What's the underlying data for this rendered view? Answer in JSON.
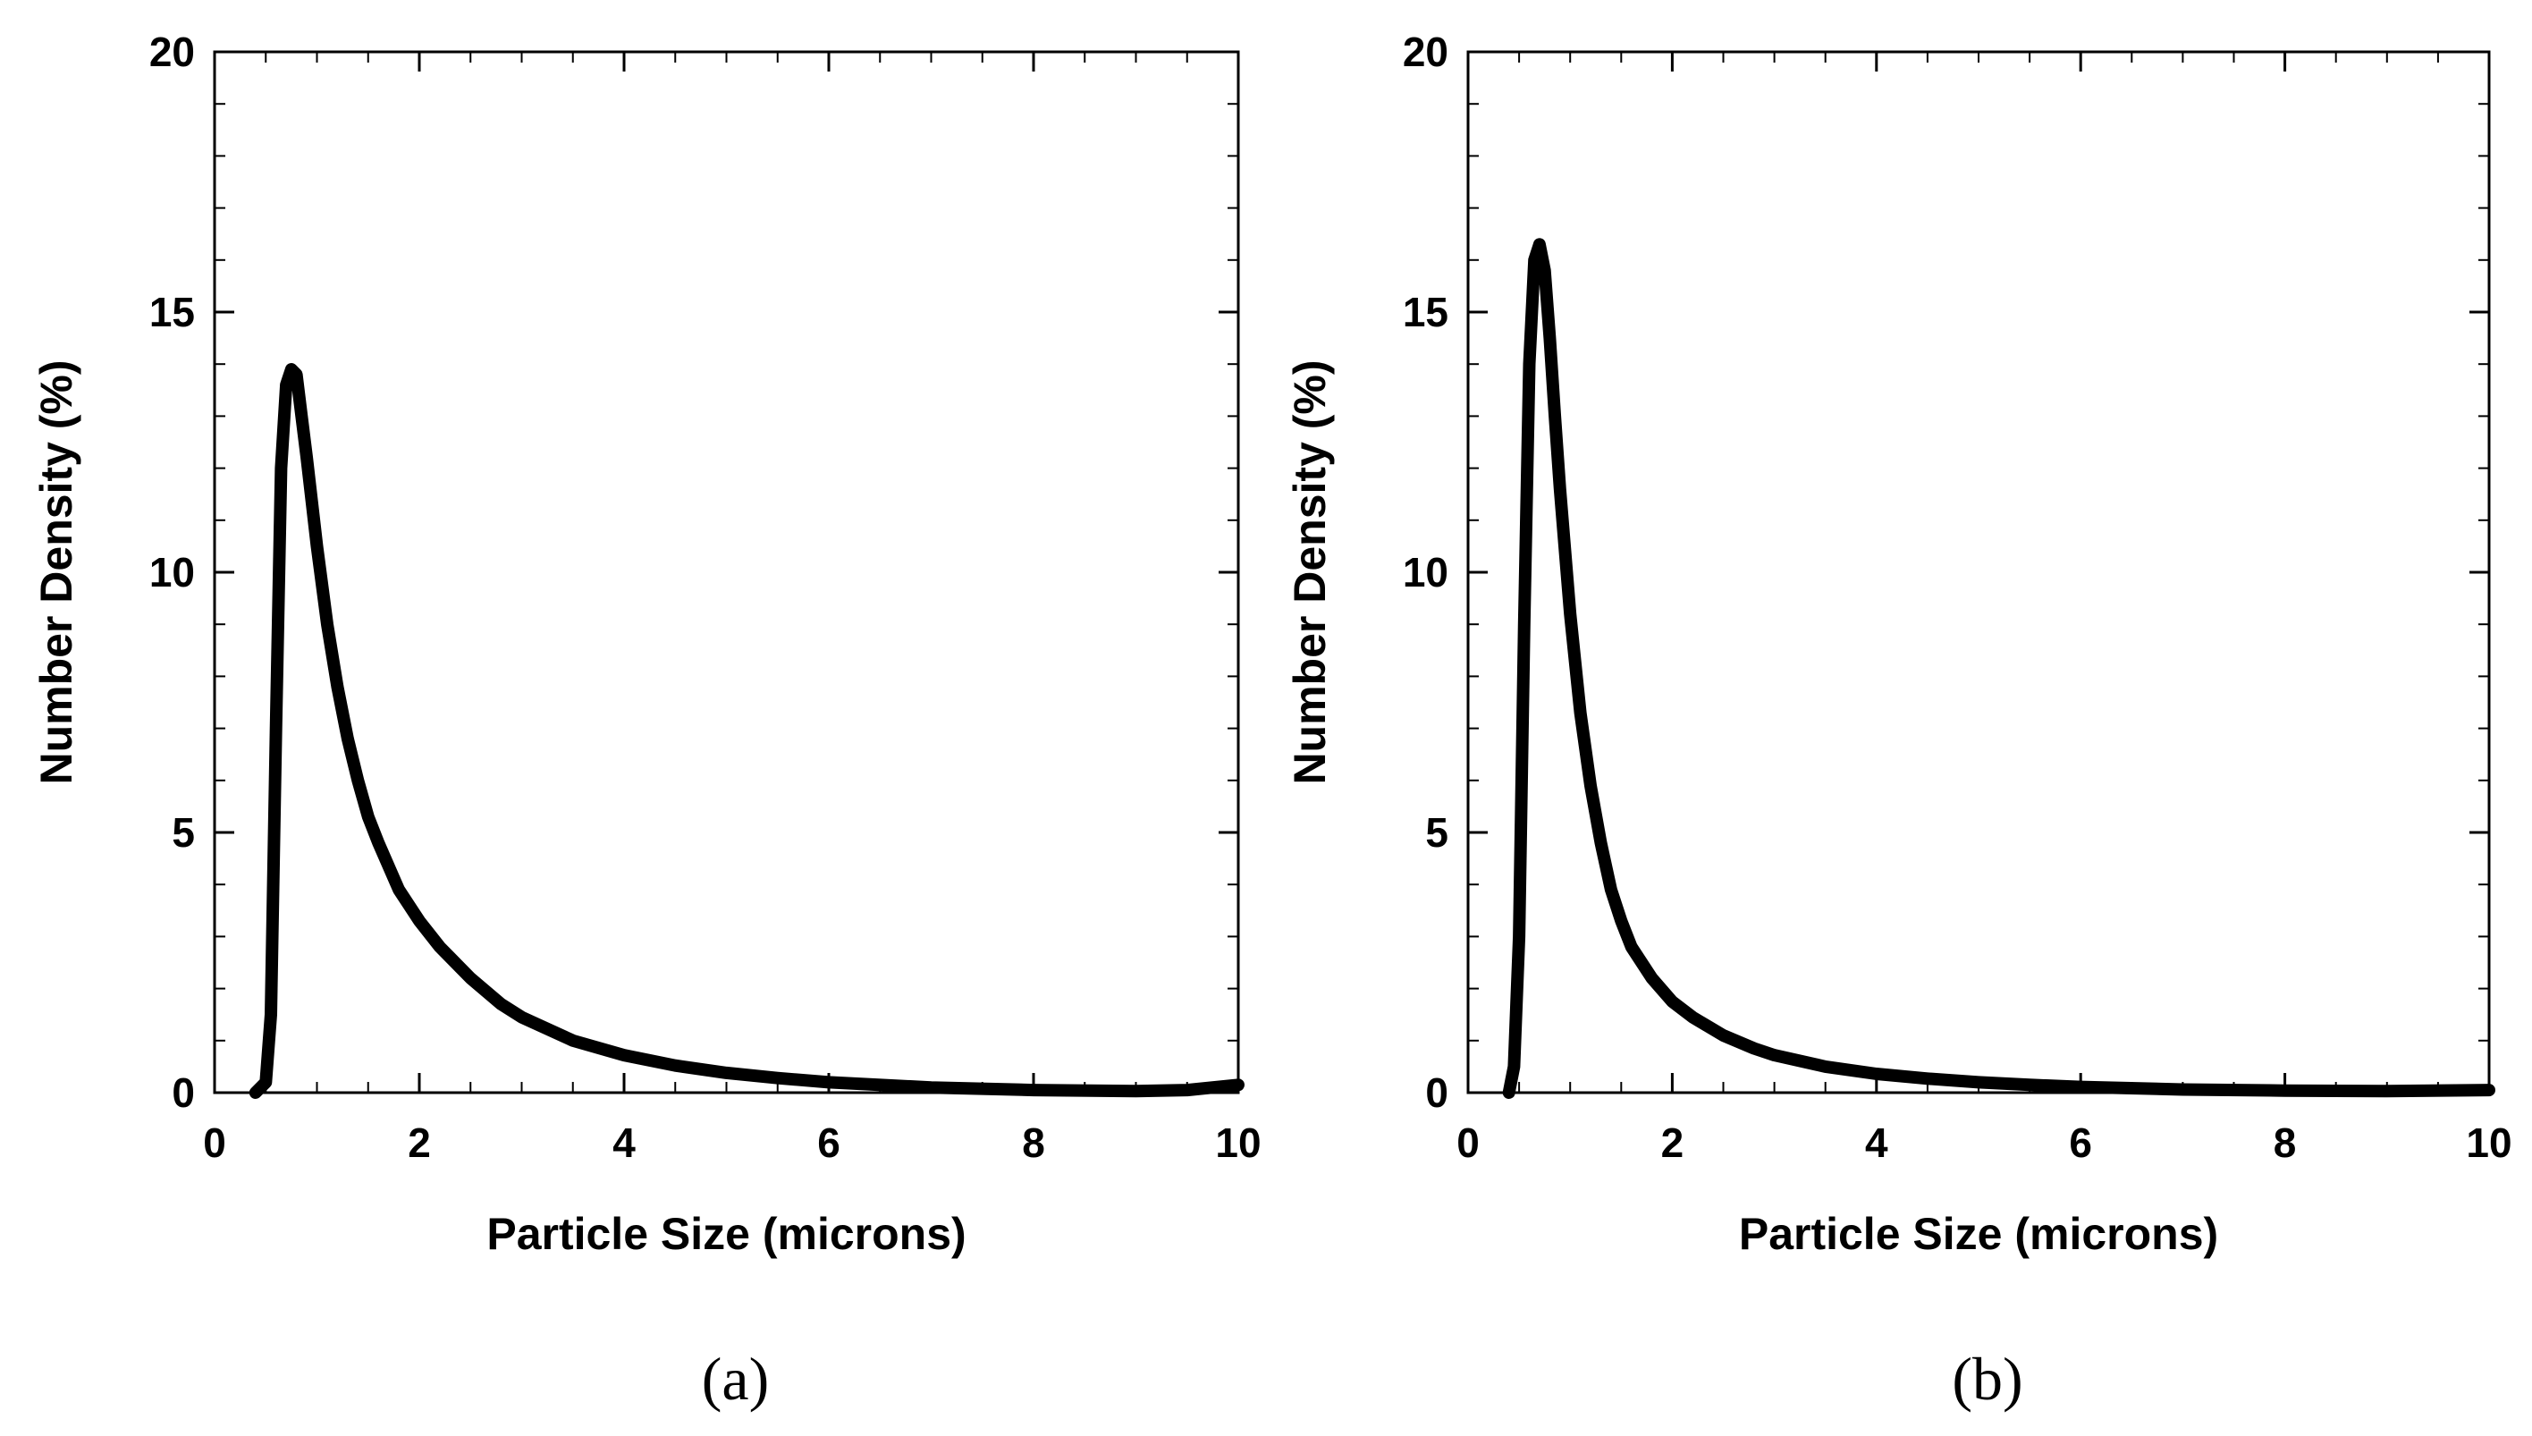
{
  "chart_data": [
    {
      "type": "line",
      "panel_label": "(a)",
      "xlabel": "Particle Size (microns)",
      "ylabel": "Number Density (%)",
      "xlim": [
        0,
        10
      ],
      "ylim": [
        0,
        20
      ],
      "xticks": [
        0,
        2,
        4,
        6,
        8,
        10
      ],
      "yticks": [
        0,
        5,
        10,
        15,
        20
      ],
      "grid": false,
      "line_color": "#000000",
      "series": [
        {
          "x": [
            0.4,
            0.5,
            0.55,
            0.6,
            0.65,
            0.7,
            0.75,
            0.8,
            0.85,
            0.9,
            1.0,
            1.1,
            1.2,
            1.3,
            1.4,
            1.5,
            1.6,
            1.8,
            2.0,
            2.2,
            2.5,
            2.8,
            3.0,
            3.5,
            4.0,
            4.5,
            5.0,
            5.5,
            6.0,
            7.0,
            8.0,
            9.0,
            9.5,
            10.0
          ],
          "y": [
            0.0,
            0.2,
            1.5,
            7.0,
            12.0,
            13.6,
            13.9,
            13.8,
            13.0,
            12.2,
            10.5,
            9.0,
            7.8,
            6.8,
            6.0,
            5.3,
            4.8,
            3.9,
            3.3,
            2.8,
            2.2,
            1.7,
            1.45,
            1.0,
            0.72,
            0.52,
            0.38,
            0.28,
            0.2,
            0.1,
            0.05,
            0.03,
            0.05,
            0.15
          ]
        }
      ]
    },
    {
      "type": "line",
      "panel_label": "(b)",
      "xlabel": "Particle Size (microns)",
      "ylabel": "Number Density (%)",
      "xlim": [
        0,
        10
      ],
      "ylim": [
        0,
        20
      ],
      "xticks": [
        0,
        2,
        4,
        6,
        8,
        10
      ],
      "yticks": [
        0,
        5,
        10,
        15,
        20
      ],
      "grid": false,
      "line_color": "#000000",
      "series": [
        {
          "x": [
            0.4,
            0.45,
            0.5,
            0.55,
            0.6,
            0.65,
            0.7,
            0.75,
            0.8,
            0.85,
            0.9,
            1.0,
            1.1,
            1.2,
            1.3,
            1.4,
            1.5,
            1.6,
            1.8,
            2.0,
            2.2,
            2.5,
            2.8,
            3.0,
            3.5,
            4.0,
            4.5,
            5.0,
            5.5,
            6.0,
            7.0,
            8.0,
            9.0,
            10.0
          ],
          "y": [
            0.0,
            0.5,
            3.0,
            9.0,
            14.0,
            16.0,
            16.3,
            15.8,
            14.5,
            13.0,
            11.6,
            9.2,
            7.3,
            5.9,
            4.8,
            3.9,
            3.3,
            2.8,
            2.2,
            1.75,
            1.45,
            1.1,
            0.85,
            0.72,
            0.5,
            0.36,
            0.27,
            0.2,
            0.15,
            0.11,
            0.06,
            0.04,
            0.03,
            0.05
          ]
        }
      ]
    }
  ]
}
